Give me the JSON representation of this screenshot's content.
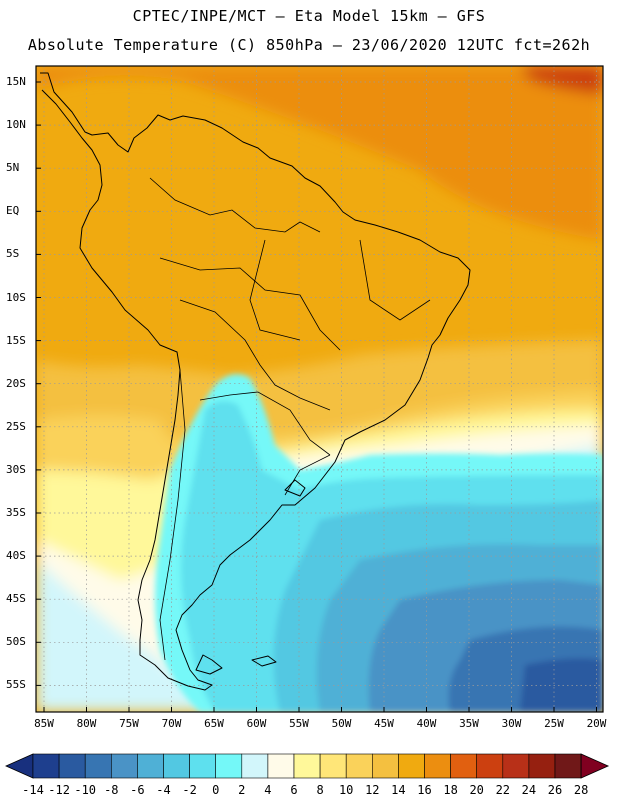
{
  "header": {
    "line1": "CPTEC/INPE/MCT –  Eta Model 15km – GFS",
    "line2": "Absolute Temperature (C) 850hPa – 23/06/2020 12UTC fct=262h"
  },
  "map": {
    "lat_labels": [
      "15N",
      "10N",
      "5N",
      "EQ",
      "5S",
      "10S",
      "15S",
      "20S",
      "25S",
      "30S",
      "35S",
      "40S",
      "45S",
      "50S",
      "55S"
    ],
    "lon_labels": [
      "85W",
      "80W",
      "75W",
      "70W",
      "65W",
      "60W",
      "55W",
      "50W",
      "45W",
      "40W",
      "35W",
      "30W",
      "25W",
      "20W"
    ]
  },
  "colorbar": {
    "labels": [
      "-14",
      "-12",
      "-10",
      "-8",
      "-6",
      "-4",
      "-2",
      "0",
      "2",
      "4",
      "6",
      "8",
      "10",
      "12",
      "14",
      "16",
      "18",
      "20",
      "22",
      "24",
      "26",
      "28"
    ],
    "colors": [
      "#1e3f8e",
      "#2a5aa0",
      "#3775b2",
      "#4a93c6",
      "#4fb0d6",
      "#52c8e2",
      "#5ee0ee",
      "#74f8f8",
      "#d2f6fb",
      "#fffbe9",
      "#fff89a",
      "#ffe678",
      "#fad25a",
      "#f4c040",
      "#f0aa10",
      "#ec8e10",
      "#e16010",
      "#cc4010",
      "#b83018",
      "#962010",
      "#701818"
    ],
    "over_color": "#800020",
    "under_color": "#18307e"
  }
}
